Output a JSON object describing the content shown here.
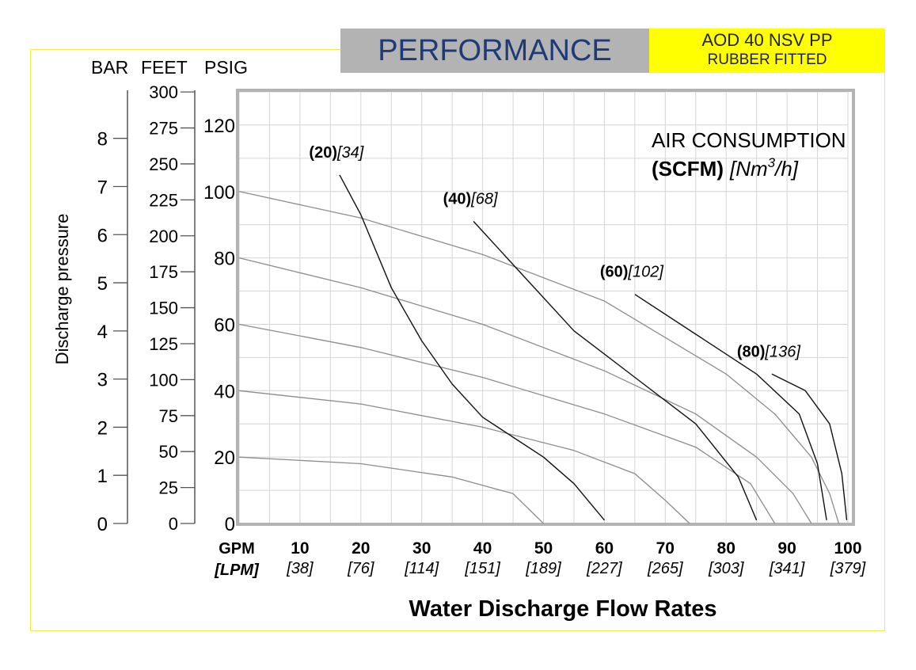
{
  "header": {
    "title": "PERFORMANCE",
    "model_line1": "AOD 40 NSV PP",
    "model_line2": "RUBBER FITTED",
    "title_bg": "#b3b3b3",
    "title_color": "#1f3a78",
    "model_bg": "#ffff00",
    "frame_color": "#f2ec4a"
  },
  "chart_data": {
    "type": "line",
    "title": "PERFORMANCE",
    "xlabel": "Water Discharge Flow Rates",
    "x_unit_primary": "GPM",
    "x_unit_secondary": "[LPM]",
    "xlim": [
      0,
      100
    ],
    "x_ticks": [
      {
        "gpm": "10",
        "lpm": "[38]"
      },
      {
        "gpm": "20",
        "lpm": "[76]"
      },
      {
        "gpm": "30",
        "lpm": "[114]"
      },
      {
        "gpm": "40",
        "lpm": "[151]"
      },
      {
        "gpm": "50",
        "lpm": "[189]"
      },
      {
        "gpm": "60",
        "lpm": "[227]"
      },
      {
        "gpm": "70",
        "lpm": "[265]"
      },
      {
        "gpm": "80",
        "lpm": "[303]"
      },
      {
        "gpm": "90",
        "lpm": "[341]"
      },
      {
        "gpm": "100",
        "lpm": "[379]"
      }
    ],
    "ylabel": "Discharge pressure",
    "axis_headers": {
      "bar": "BAR",
      "feet": "FEET",
      "psig": "PSIG"
    },
    "ylim_psig": [
      0,
      130
    ],
    "psig_ticks": [
      "0",
      "20",
      "40",
      "60",
      "80",
      "100",
      "120"
    ],
    "feet_ticks": [
      "0",
      "25",
      "50",
      "75",
      "100",
      "125",
      "150",
      "175",
      "200",
      "225",
      "250",
      "275",
      "300"
    ],
    "bar_ticks": [
      "0",
      "1",
      "2",
      "3",
      "4",
      "5",
      "6",
      "7",
      "8"
    ],
    "grid": true,
    "air_legend": {
      "line1": "AIR CONSUMPTION",
      "scfm": "(SCFM)",
      "nm_prefix": "[Nm",
      "nm_sup": "3",
      "nm_suffix": "/h]"
    },
    "pressure_curves": [
      {
        "points": [
          [
            0,
            100
          ],
          [
            20,
            92
          ],
          [
            40,
            81
          ],
          [
            60,
            67
          ],
          [
            80,
            45
          ],
          [
            88,
            33
          ],
          [
            94,
            20
          ],
          [
            97,
            9
          ],
          [
            98.5,
            0
          ]
        ]
      },
      {
        "points": [
          [
            0,
            80
          ],
          [
            20,
            71
          ],
          [
            40,
            60
          ],
          [
            60,
            46
          ],
          [
            75,
            33
          ],
          [
            85,
            20
          ],
          [
            91,
            9
          ],
          [
            94,
            0
          ]
        ]
      },
      {
        "points": [
          [
            0,
            60
          ],
          [
            20,
            53
          ],
          [
            40,
            44
          ],
          [
            60,
            33
          ],
          [
            75,
            23
          ],
          [
            84,
            12
          ],
          [
            88,
            0
          ]
        ]
      },
      {
        "points": [
          [
            0,
            40
          ],
          [
            20,
            36
          ],
          [
            40,
            29
          ],
          [
            55,
            22
          ],
          [
            65,
            15
          ],
          [
            70,
            7
          ],
          [
            74,
            0
          ]
        ]
      },
      {
        "points": [
          [
            0,
            20
          ],
          [
            20,
            18
          ],
          [
            35,
            14
          ],
          [
            45,
            9
          ],
          [
            50,
            0
          ]
        ]
      }
    ],
    "air_curves": [
      {
        "label_scfm": "(20)",
        "label_nm": "[34]",
        "points": [
          [
            16.5,
            105
          ],
          [
            20,
            93
          ],
          [
            25,
            71
          ],
          [
            30,
            55
          ],
          [
            35,
            42
          ],
          [
            40,
            32
          ],
          [
            45,
            26
          ],
          [
            50,
            20
          ],
          [
            55,
            12
          ],
          [
            60,
            1
          ]
        ]
      },
      {
        "label_scfm": "(40)",
        "label_nm": "[68]",
        "points": [
          [
            38.5,
            91
          ],
          [
            45,
            78
          ],
          [
            55,
            58
          ],
          [
            65,
            44
          ],
          [
            75,
            30
          ],
          [
            82,
            14
          ],
          [
            85,
            1
          ]
        ]
      },
      {
        "label_scfm": "(60)",
        "label_nm": "[102]",
        "points": [
          [
            65,
            69
          ],
          [
            75,
            57
          ],
          [
            85,
            45
          ],
          [
            92,
            33
          ],
          [
            95,
            18
          ],
          [
            96.5,
            1
          ]
        ]
      },
      {
        "label_scfm": "(80)",
        "label_nm": "[136]",
        "points": [
          [
            87.5,
            45
          ],
          [
            93,
            40
          ],
          [
            97,
            30
          ],
          [
            99,
            15
          ],
          [
            99.8,
            1
          ]
        ]
      }
    ]
  }
}
